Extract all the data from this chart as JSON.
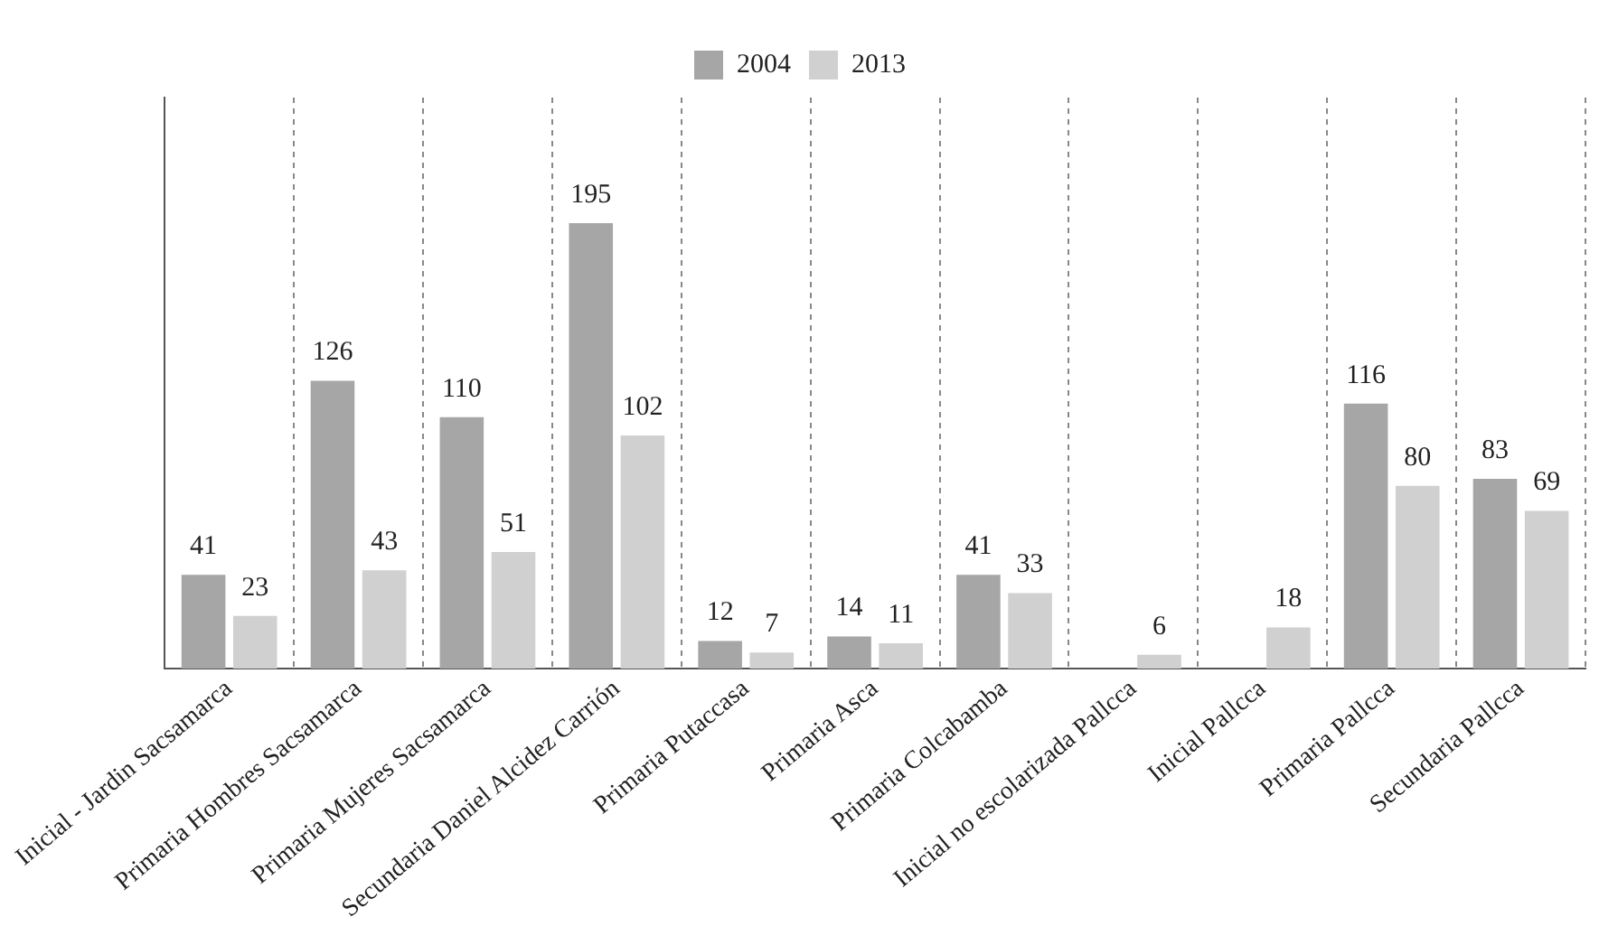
{
  "chart_data": {
    "type": "bar",
    "categories": [
      "Inicial - Jardin Sacsamarca",
      "Primaria Hombres Sacsamarca",
      "Primaria Mujeres Sacsamarca",
      "Secundaria Daniel Alcidez Carrión",
      "Primaria Putaccasa",
      "Primaria Asca",
      "Primaria Colcabamba",
      "Inicial no escolarizada Pallcca",
      "Inicial Pallcca",
      "Primaria Pallcca",
      "Secundaria Pallcca"
    ],
    "series": [
      {
        "name": "2004",
        "color": "#a6a6a6",
        "values": [
          41,
          126,
          110,
          195,
          12,
          14,
          41,
          null,
          null,
          116,
          83
        ]
      },
      {
        "name": "2013",
        "color": "#d0d0d0",
        "values": [
          23,
          43,
          51,
          102,
          7,
          11,
          33,
          6,
          18,
          80,
          69
        ]
      }
    ],
    "data_labels": true,
    "grid": "x",
    "legend": "top"
  }
}
